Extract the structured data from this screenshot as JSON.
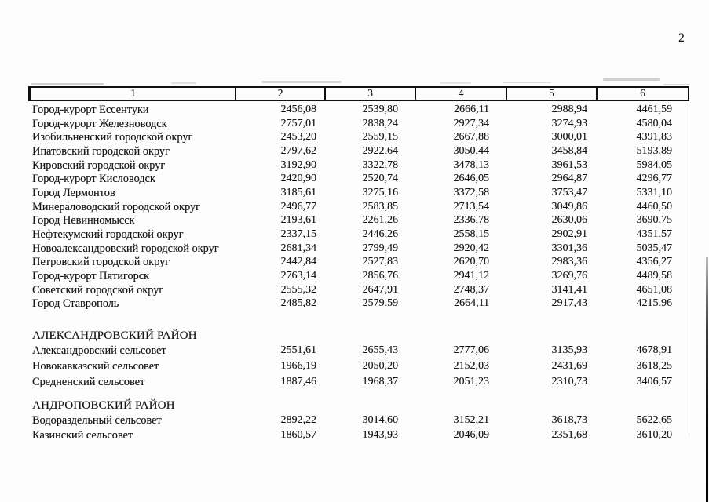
{
  "page_number": "2",
  "colors": {
    "ink": "#141414",
    "table_border": "#101010",
    "background": "#fdfdfd"
  },
  "table": {
    "header": [
      "1",
      "2",
      "3",
      "4",
      "5",
      "6"
    ],
    "rows": [
      {
        "name": "Город-курорт Ессентуки",
        "values": [
          "2456,08",
          "2539,80",
          "2666,11",
          "2988,94",
          "4461,59"
        ]
      },
      {
        "name": "Город-курорт Железноводск",
        "values": [
          "2757,01",
          "2838,24",
          "2927,34",
          "3274,93",
          "4580,04"
        ]
      },
      {
        "name": "Изобильненский городской округ",
        "values": [
          "2453,20",
          "2559,15",
          "2667,88",
          "3000,01",
          "4391,83"
        ]
      },
      {
        "name": "Ипатовский городской округ",
        "values": [
          "2797,62",
          "2922,64",
          "3050,44",
          "3458,84",
          "5193,89"
        ]
      },
      {
        "name": "Кировский городской округ",
        "values": [
          "3192,90",
          "3322,78",
          "3478,13",
          "3961,53",
          "5984,05"
        ]
      },
      {
        "name": "Город-курорт Кисловодск",
        "values": [
          "2420,90",
          "2520,74",
          "2646,05",
          "2964,87",
          "4296,77"
        ]
      },
      {
        "name": "Город Лермонтов",
        "values": [
          "3185,61",
          "3275,16",
          "3372,58",
          "3753,47",
          "5331,10"
        ]
      },
      {
        "name": "Минераловодский городской округ",
        "values": [
          "2496,77",
          "2583,85",
          "2713,54",
          "3049,86",
          "4460,50"
        ]
      },
      {
        "name": "Город Невинномысск",
        "values": [
          "2193,61",
          "2261,26",
          "2336,78",
          "2630,06",
          "3690,75"
        ]
      },
      {
        "name": "Нефтекумский городской округ",
        "values": [
          "2337,15",
          "2446,26",
          "2558,15",
          "2902,91",
          "4351,57"
        ]
      },
      {
        "name": "Новоалександровский городской округ",
        "values": [
          "2681,34",
          "2799,49",
          "2920,42",
          "3301,36",
          "5035,47"
        ]
      },
      {
        "name": "Петровский городской округ",
        "values": [
          "2442,84",
          "2527,83",
          "2620,70",
          "2983,36",
          "4356,27"
        ]
      },
      {
        "name": "Город-курорт Пятигорск",
        "values": [
          "2763,14",
          "2856,76",
          "2941,12",
          "3269,76",
          "4489,58"
        ]
      },
      {
        "name": "Советский городской округ",
        "values": [
          "2555,32",
          "2647,91",
          "2748,37",
          "3141,41",
          "4651,08"
        ]
      },
      {
        "name": "Город Ставрополь",
        "values": [
          "2485,82",
          "2579,59",
          "2664,11",
          "2917,43",
          "4215,96"
        ]
      }
    ]
  },
  "sections": [
    {
      "title": "АЛЕКСАНДРОВСКИЙ РАЙОН",
      "rows": [
        {
          "name": "Александровский сельсовет",
          "values": [
            "2551,61",
            "2655,43",
            "2777,06",
            "3135,93",
            "4678,91"
          ]
        },
        {
          "name": "Новокавказский сельсовет",
          "values": [
            "1966,19",
            "2050,20",
            "2152,03",
            "2431,69",
            "3618,25"
          ]
        },
        {
          "name": "Средненский сельсовет",
          "values": [
            "1887,46",
            "1968,37",
            "2051,23",
            "2310,73",
            "3406,57"
          ]
        }
      ]
    },
    {
      "title": "АНДРОПОВСКИЙ РАЙОН",
      "rows": [
        {
          "name": "Водораздельный сельсовет",
          "values": [
            "2892,22",
            "3014,60",
            "3152,21",
            "3618,73",
            "5622,65"
          ]
        },
        {
          "name": "Казинский сельсовет",
          "values": [
            "1860,57",
            "1943,93",
            "2046,09",
            "2351,68",
            "3610,20"
          ]
        }
      ]
    }
  ]
}
